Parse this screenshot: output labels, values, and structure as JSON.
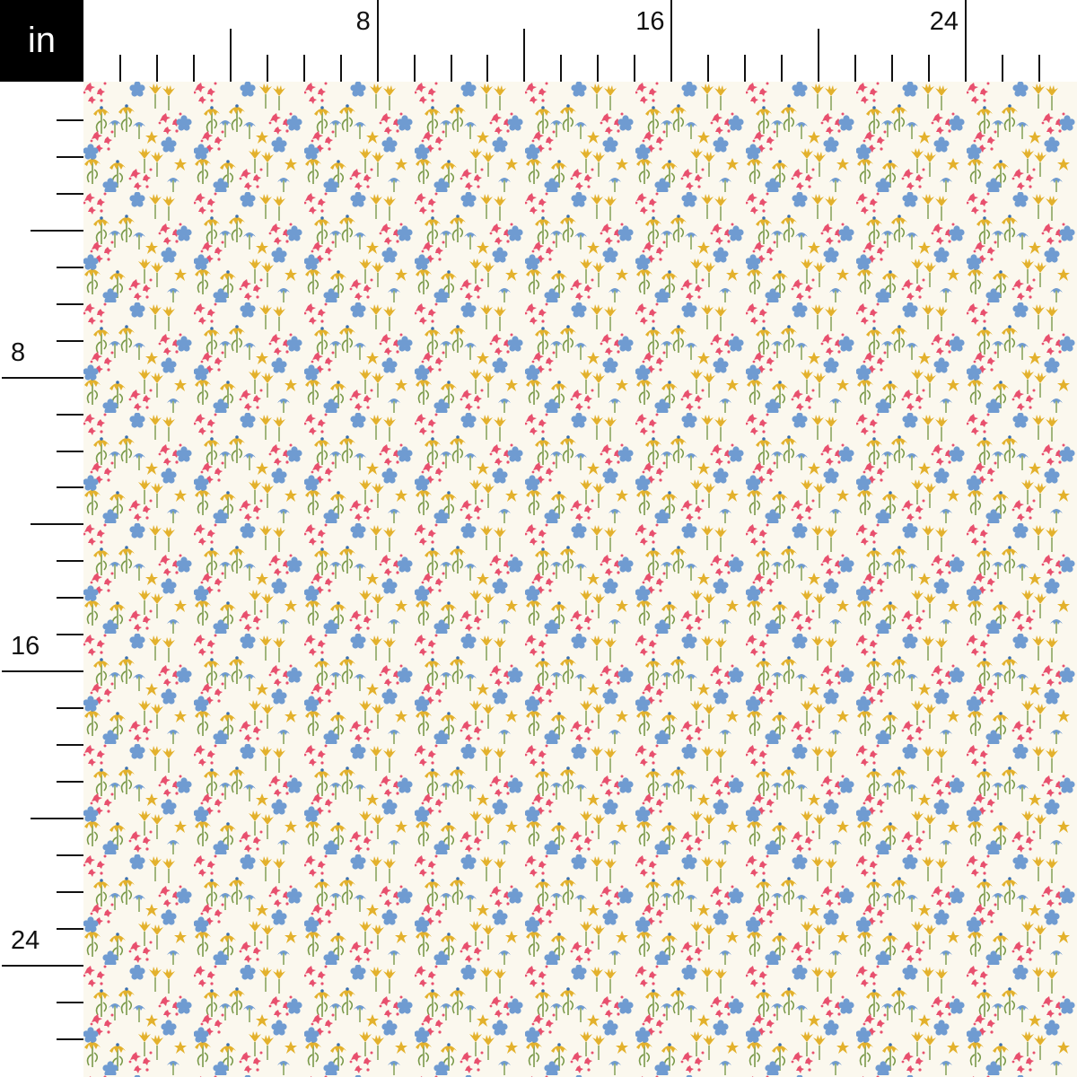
{
  "ruler": {
    "unit": "in",
    "top_labels": [
      "8",
      "16",
      "24"
    ],
    "left_labels": [
      "8",
      "16",
      "24"
    ],
    "major_every_inches": 8,
    "medium_every_inches": 4
  },
  "fabric": {
    "background": "#fbf8ee",
    "colors": {
      "yellow": "#e3b12c",
      "blue": "#6f9bd1",
      "pink": "#e8506e",
      "green": "#7a9a4a"
    }
  }
}
